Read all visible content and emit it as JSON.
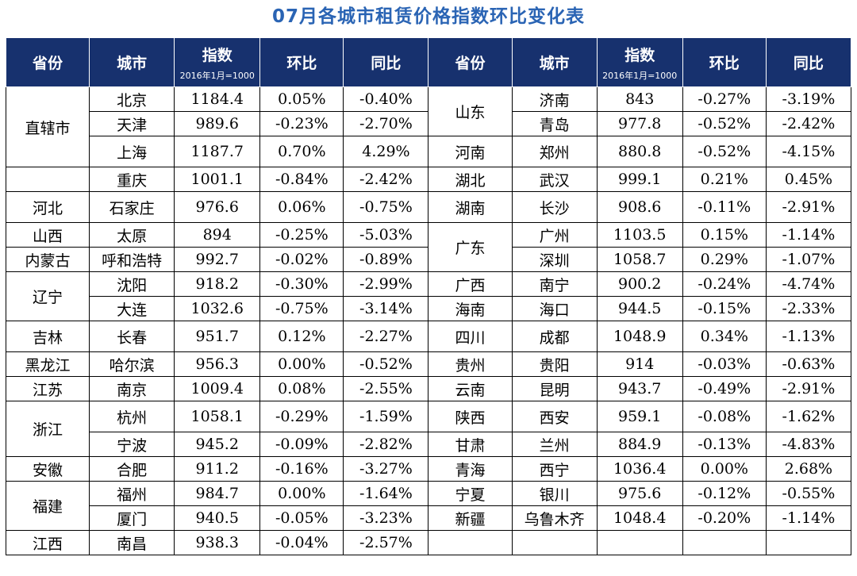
{
  "title": "07月各城市租赁价格指数环比变化表",
  "headers": {
    "province": "省份",
    "city": "城市",
    "index": "指数",
    "index_sub": "2016年1月=1000",
    "mom": "环比",
    "yoy": "同比"
  },
  "left": {
    "provinces": [
      "直辖市",
      "河北",
      "山西",
      "内蒙古",
      "辽宁",
      "吉林",
      "黑龙江",
      "江苏",
      "浙江",
      "安徽",
      "福建",
      "江西"
    ],
    "rows": [
      {
        "city": "北京",
        "index": "1184.4",
        "mom": "0.05%",
        "yoy": "-0.40%"
      },
      {
        "city": "天津",
        "index": "989.6",
        "mom": "-0.23%",
        "yoy": "-2.70%"
      },
      {
        "city": "上海",
        "index": "1187.7",
        "mom": "0.70%",
        "yoy": "4.29%"
      },
      {
        "city": "重庆",
        "index": "1001.1",
        "mom": "-0.84%",
        "yoy": "-2.42%"
      },
      {
        "city": "石家庄",
        "index": "976.6",
        "mom": "0.06%",
        "yoy": "-0.75%"
      },
      {
        "city": "太原",
        "index": "894",
        "mom": "-0.25%",
        "yoy": "-5.03%"
      },
      {
        "city": "呼和浩特",
        "index": "992.7",
        "mom": "-0.02%",
        "yoy": "-0.89%"
      },
      {
        "city": "沈阳",
        "index": "918.2",
        "mom": "-0.30%",
        "yoy": "-2.99%"
      },
      {
        "city": "大连",
        "index": "1032.6",
        "mom": "-0.75%",
        "yoy": "-3.14%"
      },
      {
        "city": "长春",
        "index": "951.7",
        "mom": "0.12%",
        "yoy": "-2.27%"
      },
      {
        "city": "哈尔滨",
        "index": "956.3",
        "mom": "0.00%",
        "yoy": "-0.52%"
      },
      {
        "city": "南京",
        "index": "1009.4",
        "mom": "0.08%",
        "yoy": "-2.55%"
      },
      {
        "city": "杭州",
        "index": "1058.1",
        "mom": "-0.29%",
        "yoy": "-1.59%"
      },
      {
        "city": "宁波",
        "index": "945.2",
        "mom": "-0.09%",
        "yoy": "-2.82%"
      },
      {
        "city": "合肥",
        "index": "911.2",
        "mom": "-0.16%",
        "yoy": "-3.27%"
      },
      {
        "city": "福州",
        "index": "984.7",
        "mom": "0.00%",
        "yoy": "-1.64%"
      },
      {
        "city": "厦门",
        "index": "940.5",
        "mom": "-0.05%",
        "yoy": "-3.23%"
      },
      {
        "city": "南昌",
        "index": "938.3",
        "mom": "-0.04%",
        "yoy": "-2.57%"
      }
    ]
  },
  "right": {
    "provinces": [
      "山东",
      "河南",
      "湖北",
      "湖南",
      "广东",
      "广西",
      "海南",
      "四川",
      "贵州",
      "云南",
      "陕西",
      "甘肃",
      "青海",
      "宁夏",
      "新疆"
    ],
    "rows": [
      {
        "city": "济南",
        "index": "843",
        "mom": "-0.27%",
        "yoy": "-3.19%"
      },
      {
        "city": "青岛",
        "index": "977.8",
        "mom": "-0.52%",
        "yoy": "-2.42%"
      },
      {
        "city": "郑州",
        "index": "880.8",
        "mom": "-0.52%",
        "yoy": "-4.15%"
      },
      {
        "city": "武汉",
        "index": "999.1",
        "mom": "0.21%",
        "yoy": "0.45%"
      },
      {
        "city": "长沙",
        "index": "908.6",
        "mom": "-0.11%",
        "yoy": "-2.91%"
      },
      {
        "city": "广州",
        "index": "1103.5",
        "mom": "0.15%",
        "yoy": "-1.14%"
      },
      {
        "city": "深圳",
        "index": "1058.7",
        "mom": "0.29%",
        "yoy": "-1.07%"
      },
      {
        "city": "南宁",
        "index": "900.2",
        "mom": "-0.24%",
        "yoy": "-4.74%"
      },
      {
        "city": "海口",
        "index": "944.5",
        "mom": "-0.15%",
        "yoy": "-2.33%"
      },
      {
        "city": "成都",
        "index": "1048.9",
        "mom": "0.34%",
        "yoy": "-1.13%"
      },
      {
        "city": "贵阳",
        "index": "914",
        "mom": "-0.03%",
        "yoy": "-0.63%"
      },
      {
        "city": "昆明",
        "index": "943.7",
        "mom": "-0.49%",
        "yoy": "-2.91%"
      },
      {
        "city": "西安",
        "index": "959.1",
        "mom": "-0.08%",
        "yoy": "-1.62%"
      },
      {
        "city": "兰州",
        "index": "884.9",
        "mom": "-0.13%",
        "yoy": "-4.83%"
      },
      {
        "city": "西宁",
        "index": "1036.4",
        "mom": "0.00%",
        "yoy": "2.68%"
      },
      {
        "city": "银川",
        "index": "975.6",
        "mom": "-0.12%",
        "yoy": "-0.55%"
      },
      {
        "city": "乌鲁木齐",
        "index": "1048.4",
        "mom": "-0.20%",
        "yoy": "-1.14%"
      }
    ]
  },
  "colors": {
    "title": "#2a64b4",
    "header_bg": "#17316e",
    "header_text": "#ffffff",
    "border": "#000000"
  }
}
